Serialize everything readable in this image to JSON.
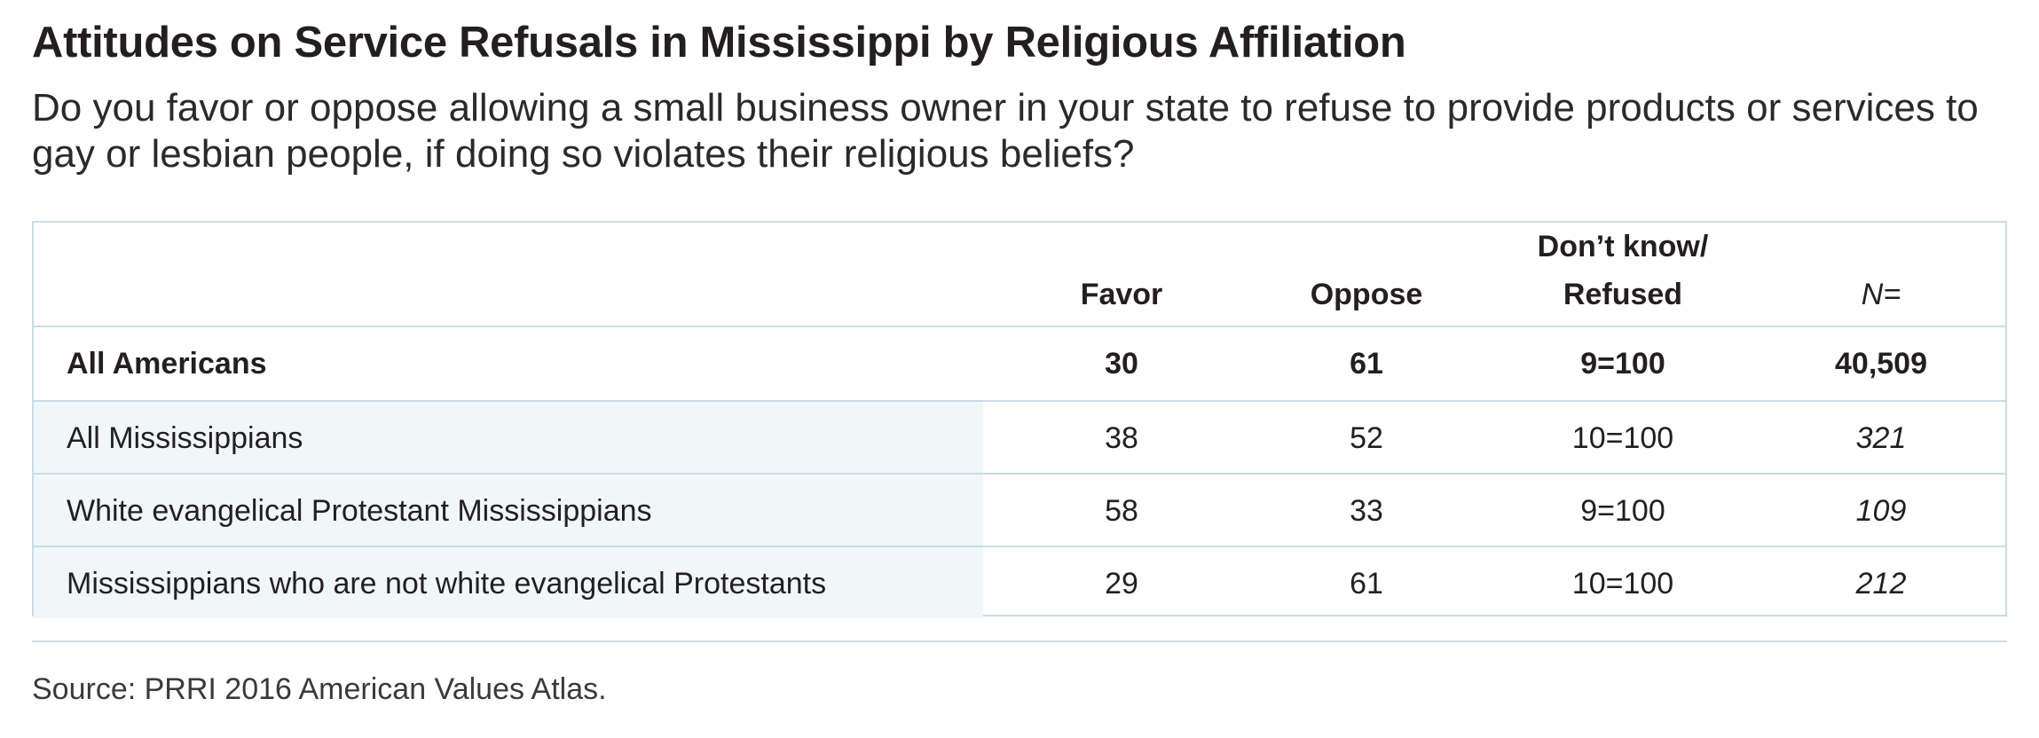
{
  "chart_data": {
    "type": "table",
    "title": "Attitudes on Service Refusals in Mississippi by Religious Affiliation",
    "subtitle": "Do you favor or oppose allowing a small business owner in your state to refuse to provide products or services to gay or lesbian people, if doing so violates their religious beliefs?",
    "columns": [
      {
        "key": "favor",
        "lines": [
          "Favor"
        ]
      },
      {
        "key": "oppose",
        "lines": [
          "Oppose"
        ]
      },
      {
        "key": "dk",
        "lines": [
          "Don’t know/",
          "Refused"
        ]
      },
      {
        "key": "n",
        "lines": [
          "N="
        ]
      }
    ],
    "rows": [
      {
        "label": "All Americans",
        "favor": "30",
        "oppose": "61",
        "dk": "9=100",
        "n": "40,509"
      },
      {
        "label": "All Mississippians",
        "favor": "38",
        "oppose": "52",
        "dk": "10=100",
        "n": "321"
      },
      {
        "label": "White evangelical Protestant Mississippians",
        "favor": "58",
        "oppose": "33",
        "dk": "9=100",
        "n": "109"
      },
      {
        "label": "Mississippians who are not white evangelical Protestants",
        "favor": "29",
        "oppose": "61",
        "dk": "10=100",
        "n": "212"
      }
    ],
    "source": "Source: PRRI 2016 American Values Atlas."
  }
}
